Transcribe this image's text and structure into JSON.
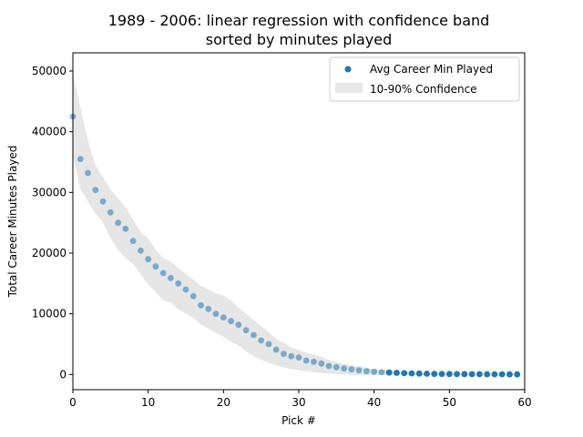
{
  "chart_data": {
    "type": "scatter",
    "title": [
      "1989 - 2006: linear regression with confidence band",
      "sorted by minutes played"
    ],
    "xlabel": "Pick #",
    "ylabel": "Total Career Minutes Played",
    "xlim": [
      0,
      60
    ],
    "ylim": [
      -2500,
      53000
    ],
    "xticks": [
      0,
      10,
      20,
      30,
      40,
      50,
      60
    ],
    "yticks": [
      0,
      10000,
      20000,
      30000,
      40000,
      50000
    ],
    "legend": {
      "position": "top-right",
      "entries": [
        "Avg Career Min Played",
        "10-90% Confidence"
      ]
    },
    "colors": {
      "points": "#1f77b4",
      "band": "#e6e6e6"
    },
    "series": [
      {
        "name": "Avg Career Min Played",
        "x": [
          0,
          1,
          2,
          3,
          4,
          5,
          6,
          7,
          8,
          9,
          10,
          11,
          12,
          13,
          14,
          15,
          16,
          17,
          18,
          19,
          20,
          21,
          22,
          23,
          24,
          25,
          26,
          27,
          28,
          29,
          30,
          31,
          32,
          33,
          34,
          35,
          36,
          37,
          38,
          39,
          40,
          41,
          42,
          43,
          44,
          45,
          46,
          47,
          48,
          49,
          50,
          51,
          52,
          53,
          54,
          55,
          56,
          57,
          58,
          59
        ],
        "y": [
          42500,
          35500,
          33200,
          30400,
          28500,
          26700,
          25000,
          24000,
          22000,
          20400,
          19000,
          17800,
          16700,
          15900,
          15000,
          14000,
          12900,
          11400,
          10800,
          10000,
          9400,
          8800,
          8200,
          7300,
          6500,
          5600,
          5000,
          4100,
          3400,
          3000,
          2800,
          2300,
          2100,
          1800,
          1400,
          1200,
          1000,
          850,
          700,
          550,
          450,
          380,
          320,
          270,
          220,
          180,
          150,
          120,
          100,
          90,
          80,
          70,
          60,
          50,
          45,
          40,
          35,
          30,
          25,
          20
        ]
      }
    ],
    "band": {
      "name": "10-90% Confidence",
      "x": [
        0,
        1,
        2,
        3,
        4,
        5,
        6,
        7,
        8,
        9,
        10,
        11,
        12,
        13,
        14,
        15,
        16,
        17,
        18,
        19,
        20,
        21,
        22,
        23,
        24,
        25,
        26,
        27,
        28,
        29,
        30,
        31,
        32,
        33,
        34,
        35,
        36,
        37,
        38,
        39,
        40,
        41,
        42,
        43,
        44,
        45,
        46,
        47,
        48,
        49,
        50,
        51,
        52,
        53,
        54,
        55,
        56,
        57,
        58,
        59
      ],
      "upper": [
        49500,
        44000,
        38500,
        34500,
        32500,
        30500,
        29000,
        27500,
        25500,
        23500,
        22500,
        20500,
        19200,
        18600,
        17500,
        16600,
        15600,
        14600,
        14000,
        13400,
        13000,
        12200,
        11000,
        10000,
        9000,
        8000,
        7000,
        5800,
        5200,
        4500,
        4000,
        3600,
        3300,
        2900,
        2400,
        2100,
        1800,
        1500,
        1300,
        1100,
        900,
        780,
        650,
        550,
        480,
        400,
        340,
        280,
        240,
        200,
        170,
        150,
        130,
        110,
        100,
        90,
        80,
        70,
        60,
        50
      ],
      "lower": [
        36000,
        30500,
        28500,
        26500,
        25000,
        22500,
        20500,
        19200,
        18200,
        16500,
        14800,
        13500,
        12200,
        11800,
        10800,
        10000,
        9300,
        8200,
        7600,
        6800,
        6200,
        5400,
        4800,
        3800,
        3000,
        2400,
        1900,
        1500,
        1200,
        900,
        700,
        500,
        350,
        250,
        150,
        80,
        20,
        -40,
        -80,
        -100,
        -110,
        -120,
        -120,
        -120,
        -120,
        -120,
        -120,
        -120,
        -120,
        -120,
        -120,
        -120,
        -120,
        -120,
        -120,
        -120,
        -120,
        -120,
        -120,
        -120
      ]
    }
  }
}
